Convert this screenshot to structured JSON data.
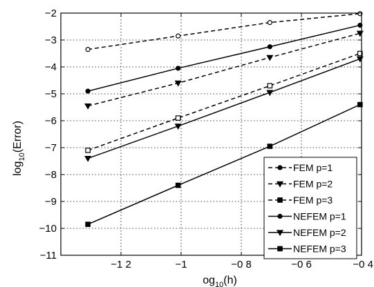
{
  "chart_data": {
    "type": "line",
    "xlabel": "og",
    "xlabel_sub": "10",
    "xlabel_suffix": "(h)",
    "ylabel": "log",
    "ylabel_sub": "10",
    "ylabel_suffix": "(Error)",
    "xlim": [
      -1.4,
      -0.4
    ],
    "ylim": [
      -11,
      -2
    ],
    "grid": true,
    "legend_position": "lower-right",
    "x_ticks": [
      {
        "value": -1.2,
        "label": "−1 2"
      },
      {
        "value": -1.0,
        "label": "−1"
      },
      {
        "value": -0.8,
        "label": "−0 8"
      },
      {
        "value": -0.6,
        "label": "−0 6"
      },
      {
        "value": -0.4,
        "label": "−0 4"
      }
    ],
    "y_ticks": [
      {
        "value": -2,
        "label": "−2"
      },
      {
        "value": -3,
        "label": "−3"
      },
      {
        "value": -4,
        "label": "−4"
      },
      {
        "value": -5,
        "label": "−5"
      },
      {
        "value": -6,
        "label": "−6"
      },
      {
        "value": -7,
        "label": "−7"
      },
      {
        "value": -8,
        "label": "−8"
      },
      {
        "value": -9,
        "label": "−9"
      },
      {
        "value": -10,
        "label": "−10"
      },
      {
        "value": -11,
        "label": "−11"
      }
    ],
    "series": [
      {
        "name": "FEM p=1",
        "dash": "dashed",
        "marker": "circle",
        "x": [
          -1.31,
          -1.01,
          -0.705,
          -0.405
        ],
        "y": [
          -3.35,
          -2.85,
          -2.35,
          -2.02
        ]
      },
      {
        "name": "FEM p=2",
        "dash": "dashed",
        "marker": "triangle",
        "x": [
          -1.31,
          -1.01,
          -0.705,
          -0.405
        ],
        "y": [
          -5.45,
          -4.6,
          -3.65,
          -2.75
        ]
      },
      {
        "name": "FEM p=3",
        "dash": "dashed",
        "marker": "square",
        "x": [
          -1.31,
          -1.01,
          -0.705,
          -0.405
        ],
        "y": [
          -7.1,
          -5.9,
          -4.7,
          -3.5
        ]
      },
      {
        "name": "NEFEM p=1",
        "dash": "solid",
        "marker": "circle",
        "x": [
          -1.31,
          -1.01,
          -0.705,
          -0.405
        ],
        "y": [
          -4.9,
          -4.05,
          -3.25,
          -2.45
        ]
      },
      {
        "name": "NEFEM p=2",
        "dash": "solid",
        "marker": "triangle",
        "x": [
          -1.31,
          -1.01,
          -0.705,
          -0.405
        ],
        "y": [
          -7.4,
          -6.2,
          -4.95,
          -3.7
        ]
      },
      {
        "name": "NEFEM p=3",
        "dash": "solid",
        "marker": "square",
        "x": [
          -1.31,
          -1.01,
          -0.705,
          -0.405
        ],
        "y": [
          -9.85,
          -8.4,
          -6.95,
          -5.4
        ]
      }
    ]
  }
}
